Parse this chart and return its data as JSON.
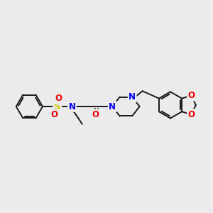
{
  "background_color": "#ebebeb",
  "figsize": [
    3.0,
    3.0
  ],
  "dpi": 100,
  "bond_color": "#1a1a1a",
  "N_color": "#0000ee",
  "O_color": "#ee0000",
  "S_color": "#cccc00",
  "line_width": 1.4,
  "font_size": 8.5,
  "ylim": [
    100,
    220
  ],
  "xlim": [
    5,
    295
  ]
}
